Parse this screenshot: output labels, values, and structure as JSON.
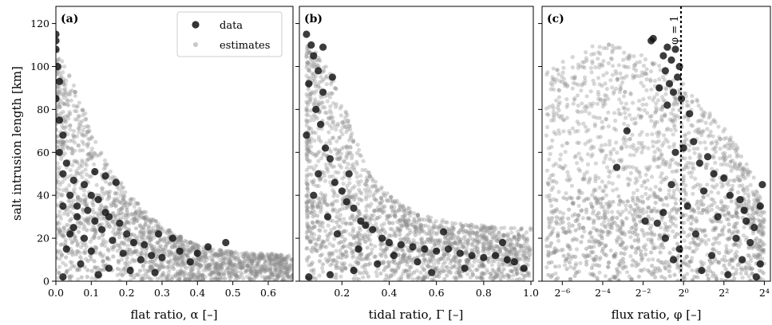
{
  "figure": {
    "ylabel": "salt intrusion length [km]",
    "legend": {
      "placement": "top-right of panel (a)",
      "entries": [
        {
          "label": "data",
          "color": "#1a1a1a"
        },
        {
          "label": "estimates",
          "color": "#bbbbbb"
        }
      ]
    }
  },
  "colors": {
    "data": "#111111",
    "estimates": "#8c8c8c",
    "reference_line": "#000000"
  },
  "chart_data": [
    {
      "type": "scatter",
      "panel": "(a)",
      "xlabel": "flat ratio, α [–]",
      "ylabel": "salt intrusion length [km]",
      "xlim": [
        0,
        0.67
      ],
      "ylim": [
        0,
        128
      ],
      "xscale": "linear",
      "xticks": [
        0.0,
        0.1,
        0.2,
        0.3,
        0.4,
        0.5,
        0.6
      ],
      "xtick_labels": [
        "0.0",
        "0.1",
        "0.2",
        "0.3",
        "0.4",
        "0.5",
        "0.6"
      ],
      "yticks": [
        0,
        20,
        40,
        60,
        80,
        100,
        120
      ],
      "ytick_labels": [
        "0",
        "20",
        "40",
        "60",
        "80",
        "100",
        "120"
      ],
      "series": [
        {
          "name": "data",
          "points": [
            [
              0.0,
              115
            ],
            [
              0.0,
              112
            ],
            [
              0.0,
              108
            ],
            [
              0.005,
              100
            ],
            [
              0.01,
              93
            ],
            [
              0.0,
              85
            ],
            [
              0.01,
              75
            ],
            [
              0.02,
              68
            ],
            [
              0.01,
              60
            ],
            [
              0.03,
              55
            ],
            [
              0.02,
              50
            ],
            [
              0.05,
              47
            ],
            [
              0.08,
              45
            ],
            [
              0.04,
              40
            ],
            [
              0.1,
              40
            ],
            [
              0.12,
              38
            ],
            [
              0.06,
              35
            ],
            [
              0.09,
              33
            ],
            [
              0.14,
              32
            ],
            [
              0.15,
              30
            ],
            [
              0.11,
              28
            ],
            [
              0.18,
              27
            ],
            [
              0.05,
              25
            ],
            [
              0.13,
              24
            ],
            [
              0.2,
              22
            ],
            [
              0.08,
              20
            ],
            [
              0.16,
              19
            ],
            [
              0.22,
              18
            ],
            [
              0.25,
              17
            ],
            [
              0.03,
              15
            ],
            [
              0.1,
              14
            ],
            [
              0.19,
              13
            ],
            [
              0.27,
              12
            ],
            [
              0.3,
              11
            ],
            [
              0.35,
              14
            ],
            [
              0.4,
              13
            ],
            [
              0.43,
              16
            ],
            [
              0.48,
              18
            ],
            [
              0.29,
              22
            ],
            [
              0.33,
              20
            ],
            [
              0.24,
              10
            ],
            [
              0.07,
              8
            ],
            [
              0.15,
              6
            ],
            [
              0.21,
              5
            ],
            [
              0.12,
              3
            ],
            [
              0.02,
              2
            ],
            [
              0.28,
              4
            ],
            [
              0.38,
              9
            ],
            [
              0.17,
              46
            ],
            [
              0.14,
              49
            ],
            [
              0.11,
              51
            ],
            [
              0.06,
              30
            ],
            [
              0.04,
              22
            ],
            [
              0.02,
              35
            ]
          ]
        },
        {
          "name": "estimates",
          "envelope": [
            [
              0.0,
              110
            ],
            [
              0.02,
              103
            ],
            [
              0.05,
              92
            ],
            [
              0.08,
              80
            ],
            [
              0.1,
              70
            ],
            [
              0.13,
              60
            ],
            [
              0.16,
              52
            ],
            [
              0.2,
              42
            ],
            [
              0.25,
              33
            ],
            [
              0.3,
              26
            ],
            [
              0.35,
              21
            ],
            [
              0.4,
              17
            ],
            [
              0.45,
              15
            ],
            [
              0.5,
              14
            ],
            [
              0.55,
              13
            ],
            [
              0.6,
              13
            ],
            [
              0.67,
              12
            ]
          ]
        }
      ]
    },
    {
      "type": "scatter",
      "panel": "(b)",
      "xlabel": "tidal ratio, Γ [–]",
      "xlim": [
        0.02,
        1.01
      ],
      "ylim": [
        0,
        128
      ],
      "xscale": "linear",
      "xticks": [
        0.2,
        0.4,
        0.6,
        0.8,
        1.0
      ],
      "xtick_labels": [
        "0.2",
        "0.4",
        "0.6",
        "0.8",
        "1.0"
      ],
      "series": [
        {
          "name": "data",
          "points": [
            [
              0.05,
              115
            ],
            [
              0.07,
              110
            ],
            [
              0.08,
              105
            ],
            [
              0.1,
              98
            ],
            [
              0.06,
              92
            ],
            [
              0.12,
              88
            ],
            [
              0.09,
              80
            ],
            [
              0.11,
              73
            ],
            [
              0.05,
              68
            ],
            [
              0.13,
              62
            ],
            [
              0.15,
              57
            ],
            [
              0.1,
              50
            ],
            [
              0.17,
              46
            ],
            [
              0.2,
              42
            ],
            [
              0.08,
              40
            ],
            [
              0.22,
              37
            ],
            [
              0.25,
              34
            ],
            [
              0.14,
              30
            ],
            [
              0.28,
              28
            ],
            [
              0.3,
              26
            ],
            [
              0.33,
              24
            ],
            [
              0.18,
              22
            ],
            [
              0.37,
              20
            ],
            [
              0.4,
              18
            ],
            [
              0.45,
              17
            ],
            [
              0.5,
              16
            ],
            [
              0.55,
              15
            ],
            [
              0.6,
              14
            ],
            [
              0.65,
              15
            ],
            [
              0.63,
              23
            ],
            [
              0.7,
              13
            ],
            [
              0.75,
              12
            ],
            [
              0.8,
              11
            ],
            [
              0.85,
              12
            ],
            [
              0.88,
              18
            ],
            [
              0.9,
              10
            ],
            [
              0.93,
              9
            ],
            [
              0.97,
              6
            ],
            [
              0.42,
              12
            ],
            [
              0.35,
              8
            ],
            [
              0.25,
              5
            ],
            [
              0.15,
              3
            ],
            [
              0.06,
              2
            ],
            [
              0.52,
              9
            ],
            [
              0.72,
              6
            ],
            [
              0.58,
              4
            ],
            [
              0.12,
              109
            ],
            [
              0.16,
              95
            ],
            [
              0.23,
              50
            ],
            [
              0.27,
              15
            ]
          ]
        },
        {
          "name": "estimates",
          "envelope": [
            [
              0.05,
              110
            ],
            [
              0.1,
              106
            ],
            [
              0.15,
              98
            ],
            [
              0.2,
              85
            ],
            [
              0.25,
              68
            ],
            [
              0.3,
              55
            ],
            [
              0.35,
              46
            ],
            [
              0.4,
              40
            ],
            [
              0.5,
              33
            ],
            [
              0.6,
              29
            ],
            [
              0.7,
              27
            ],
            [
              0.8,
              26
            ],
            [
              0.9,
              25
            ],
            [
              1.0,
              25
            ]
          ]
        }
      ]
    },
    {
      "type": "scatter",
      "panel": "(c)",
      "xlabel": "flux ratio, φ [–]",
      "xlim": [
        -7.0,
        4.3
      ],
      "x_units": "log2(φ)",
      "ylim": [
        0,
        128
      ],
      "xscale": "log2",
      "xticks": [
        -6,
        -4,
        -2,
        0,
        2,
        4
      ],
      "xtick_labels": [
        "2⁻⁶",
        "2⁻⁴",
        "2⁻²",
        "2⁰",
        "2²",
        "2⁴"
      ],
      "annotation": {
        "text": "φ = 1",
        "x": 0
      },
      "series": [
        {
          "name": "data",
          "points": [
            [
              -1.5,
              113
            ],
            [
              -1.6,
              112
            ],
            [
              -0.8,
              109
            ],
            [
              -0.4,
              108
            ],
            [
              -1.0,
              105
            ],
            [
              -0.6,
              103
            ],
            [
              -0.2,
              100
            ],
            [
              -0.9,
              98
            ],
            [
              -0.3,
              95
            ],
            [
              -0.7,
              92
            ],
            [
              -1.2,
              90
            ],
            [
              -0.5,
              88
            ],
            [
              -0.1,
              85
            ],
            [
              -0.8,
              82
            ],
            [
              0.3,
              78
            ],
            [
              -2.8,
              70
            ],
            [
              0.5,
              65
            ],
            [
              -0.4,
              60
            ],
            [
              1.2,
              58
            ],
            [
              0.8,
              55
            ],
            [
              -3.3,
              53
            ],
            [
              1.5,
              50
            ],
            [
              2.0,
              48
            ],
            [
              -0.6,
              45
            ],
            [
              1.0,
              42
            ],
            [
              2.3,
              40
            ],
            [
              2.8,
              38
            ],
            [
              0.2,
              35
            ],
            [
              -1.0,
              32
            ],
            [
              1.7,
              30
            ],
            [
              3.1,
              28
            ],
            [
              3.5,
              25
            ],
            [
              0.6,
              22
            ],
            [
              2.6,
              20
            ],
            [
              3.3,
              18
            ],
            [
              -0.2,
              15
            ],
            [
              1.4,
              12
            ],
            [
              2.9,
              10
            ],
            [
              3.8,
              8
            ],
            [
              0.9,
              5
            ],
            [
              2.2,
              3
            ],
            [
              3.6,
              2
            ],
            [
              -1.3,
              27
            ],
            [
              -0.9,
              20
            ],
            [
              0.0,
              62
            ],
            [
              3.9,
              45
            ],
            [
              3.8,
              35
            ],
            [
              3.0,
              33
            ],
            [
              -1.9,
              28
            ],
            [
              -0.5,
              10
            ]
          ]
        },
        {
          "name": "estimates",
          "envelope": [
            [
              -6.8,
              98
            ],
            [
              -6.0,
              103
            ],
            [
              -5.0,
              108
            ],
            [
              -4.0,
              111
            ],
            [
              -3.0,
              110
            ],
            [
              -2.0,
              106
            ],
            [
              -1.0,
              99
            ],
            [
              0.0,
              92
            ],
            [
              1.0,
              82
            ],
            [
              2.0,
              72
            ],
            [
              3.0,
              58
            ],
            [
              3.5,
              48
            ],
            [
              4.0,
              32
            ]
          ]
        }
      ]
    }
  ]
}
